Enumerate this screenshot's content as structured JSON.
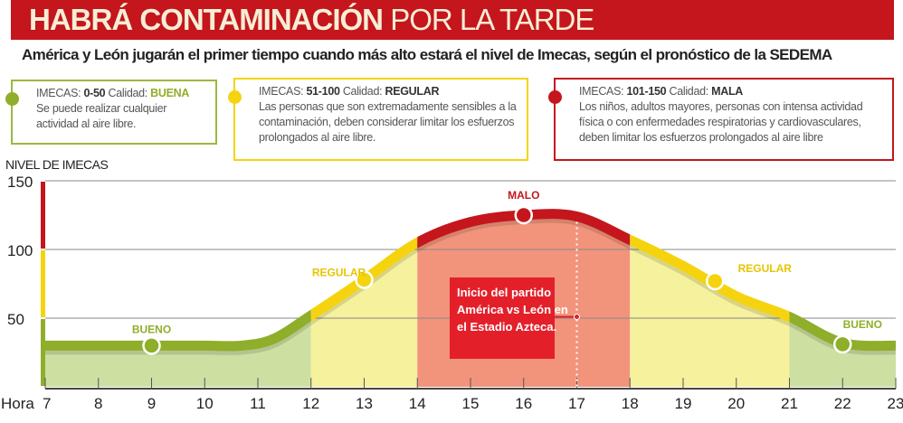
{
  "header": {
    "title_bold": "HABRÁ CONTAMINACIÓN",
    "title_light": "POR LA TARDE",
    "subtitle": "América y León jugarán el primer tiempo cuando más alto estará el nivel de Imecas, según el pronóstico de la SEDEMA"
  },
  "legend": [
    {
      "imecas_label": "IMECAS:",
      "range": "0-50",
      "calidad_label": "Calidad:",
      "quality": "BUENA",
      "description": "Se puede realizar cualquier actividad al aire libre.",
      "color": "#8fae2a"
    },
    {
      "imecas_label": "IMECAS:",
      "range": "51-100",
      "calidad_label": "Calidad:",
      "quality": "REGULAR",
      "description": "Las personas que son extremadamente sensibles a la contaminación, deben considerar limitar los esfuerzos prolongados al aire libre.",
      "color": "#f5d40f"
    },
    {
      "imecas_label": "IMECAS:",
      "range": "101-150",
      "calidad_label": "Calidad:",
      "quality": "MALA",
      "description": "Los niños, adultos mayores, personas con intensa actividad física o con enfermedades respiratorias y cardiovasculares, deben limitar los esfuerzos prolongados al aire libre",
      "color": "#c4161c"
    }
  ],
  "chart_data": {
    "type": "area",
    "ylabel": "NIVEL DE IMECAS",
    "xlabel": "Hora",
    "ylim": [
      0,
      150
    ],
    "xlim": [
      7,
      23
    ],
    "yticks": [
      50,
      100,
      150
    ],
    "xticks": [
      7,
      8,
      9,
      10,
      11,
      12,
      13,
      14,
      15,
      16,
      17,
      18,
      19,
      20,
      21,
      22,
      23
    ],
    "grid": true,
    "series": [
      {
        "x": [
          7,
          8,
          9,
          10,
          10.7,
          11.3,
          12,
          13,
          14,
          15,
          16,
          17,
          18,
          19,
          20,
          21,
          22,
          23
        ],
        "y": [
          30,
          30,
          30,
          30,
          30,
          35,
          52,
          78,
          105,
          120,
          125,
          124,
          107,
          88,
          66,
          51,
          32,
          30
        ]
      }
    ],
    "bands": [
      {
        "from": 7,
        "to": 12,
        "label": "BUENO",
        "marker_x": 9,
        "marker_y": 30,
        "color": "#8fae2a",
        "fill": "#cde0a2"
      },
      {
        "from": 12,
        "to": 14,
        "label": "REGULAR",
        "marker_x": 13,
        "marker_y": 78,
        "color": "#f5d40f",
        "fill": "#f6f19c"
      },
      {
        "from": 14,
        "to": 18,
        "label": "MALO",
        "marker_x": 16,
        "marker_y": 125,
        "color": "#c4161c",
        "fill": "#f2947c"
      },
      {
        "from": 18,
        "to": 21,
        "label": "REGULAR",
        "marker_x": 19.6,
        "marker_y": 77,
        "color": "#f5d40f",
        "fill": "#f6f19c"
      },
      {
        "from": 21,
        "to": 23,
        "label": "BUENO",
        "marker_x": 22,
        "marker_y": 31,
        "color": "#8fae2a",
        "fill": "#cde0a2"
      }
    ],
    "annotation": {
      "x": 17,
      "y": 51,
      "text": [
        "Inicio del partido",
        "América vs León en",
        "el Estadio Azteca."
      ],
      "color": "#e3202a"
    }
  }
}
